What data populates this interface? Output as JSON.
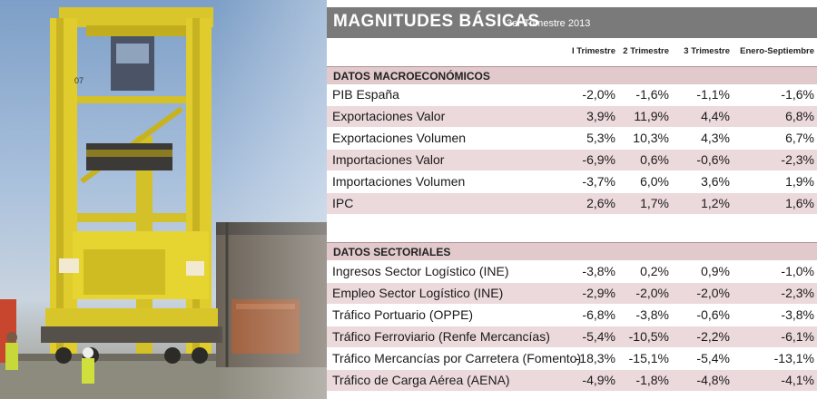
{
  "title": "MAGNITUDES BÁSICAS",
  "subtitle": "3er Trimestre 2013",
  "columns": [
    "I Trimestre",
    "2 Trimestre",
    "3 Trimestre",
    "Enero-Septiembre"
  ],
  "photo": {
    "crane_number": "07"
  },
  "sections": [
    {
      "heading": "DATOS MACROECONÓMICOS",
      "rows": [
        {
          "label": "PIB España",
          "values": [
            "-2,0%",
            "-1,6%",
            "-1,1%",
            "-1,6%"
          ]
        },
        {
          "label": "Exportaciones Valor",
          "values": [
            "3,9%",
            "11,9%",
            "4,4%",
            "6,8%"
          ]
        },
        {
          "label": "Exportaciones Volumen",
          "values": [
            "5,3%",
            "10,3%",
            "4,3%",
            "6,7%"
          ]
        },
        {
          "label": "Importaciones Valor",
          "values": [
            "-6,9%",
            "0,6%",
            "-0,6%",
            "-2,3%"
          ]
        },
        {
          "label": "Importaciones Volumen",
          "values": [
            "-3,7%",
            "6,0%",
            "3,6%",
            "1,9%"
          ]
        },
        {
          "label": "IPC",
          "values": [
            "2,6%",
            "1,7%",
            "1,2%",
            "1,6%"
          ]
        }
      ]
    },
    {
      "heading": "DATOS SECTORIALES",
      "rows": [
        {
          "label": "Ingresos Sector Logístico (INE)",
          "values": [
            "-3,8%",
            "0,2%",
            "0,9%",
            "-1,0%"
          ]
        },
        {
          "label": "Empleo Sector Logístico (INE)",
          "values": [
            "-2,9%",
            "-2,0%",
            "-2,0%",
            "-2,3%"
          ]
        },
        {
          "label": "Tráfico Portuario (OPPE)",
          "values": [
            "-6,8%",
            "-3,8%",
            "-0,6%",
            "-3,8%"
          ]
        },
        {
          "label": "Tráfico Ferroviario (Renfe Mercancías)",
          "values": [
            "-5,4%",
            "-10,5%",
            "-2,2%",
            "-6,1%"
          ]
        },
        {
          "label": "Tráfico Mercancías por Carretera (Fomento)",
          "values": [
            "-18,3%",
            "-15,1%",
            "-5,4%",
            "-13,1%"
          ]
        },
        {
          "label": "Tráfico de Carga Aérea (AENA)",
          "values": [
            "-4,9%",
            "-1,8%",
            "-4,8%",
            "-4,1%"
          ]
        }
      ]
    }
  ]
}
